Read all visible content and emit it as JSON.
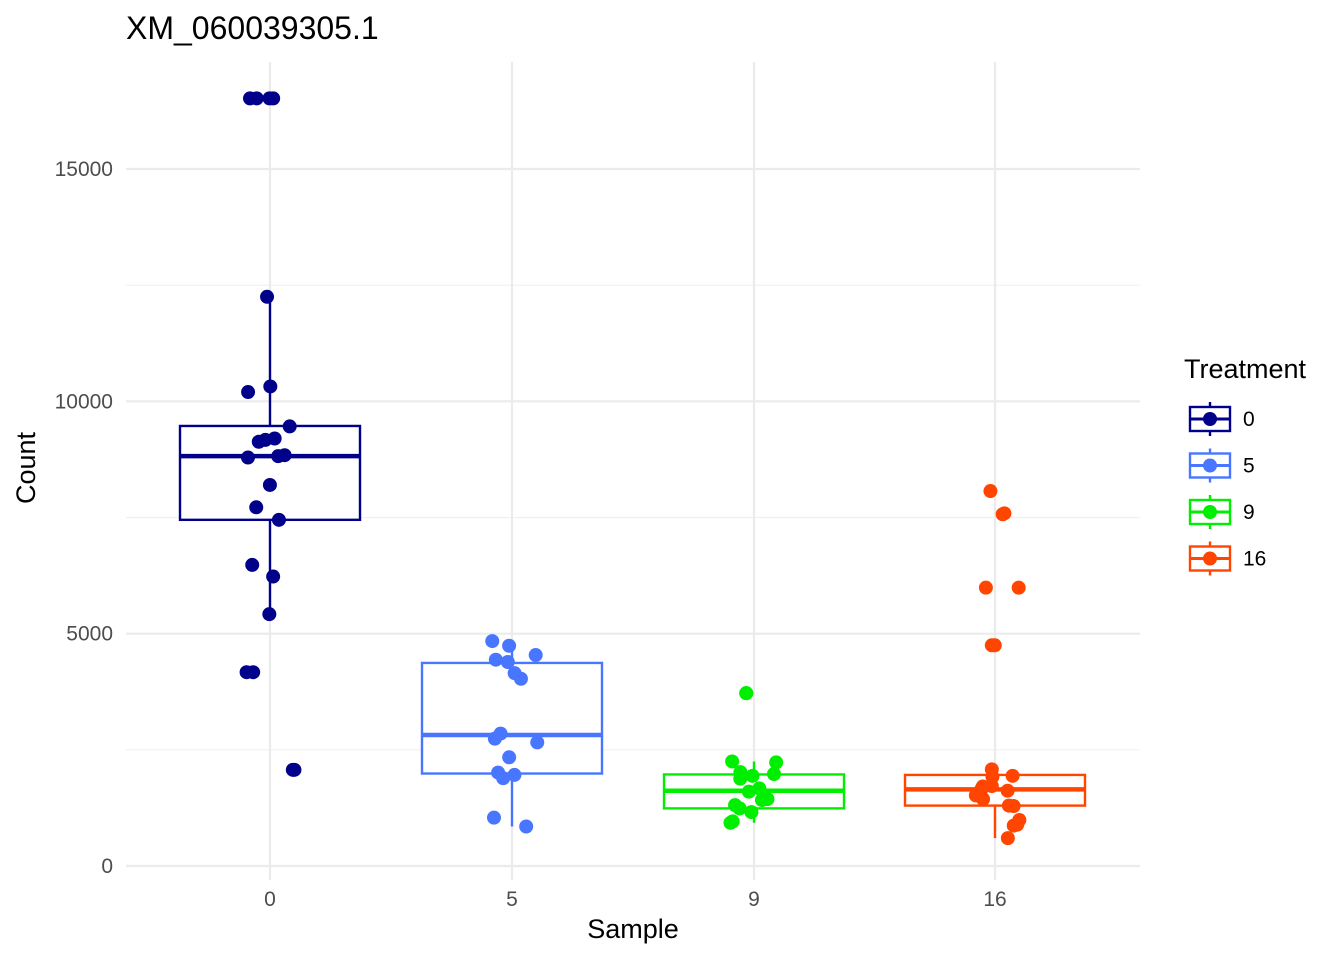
{
  "chart_data": {
    "type": "box",
    "title": "XM_060039305.1",
    "xlabel": "Sample",
    "ylabel": "Count",
    "categories": [
      "0",
      "5",
      "9",
      "16"
    ],
    "ylim": [
      0,
      16500
    ],
    "y_ticks": [
      0,
      5000,
      10000,
      15000
    ],
    "grid": true,
    "legend": {
      "title": "Treatment",
      "position": "right",
      "entries": [
        "0",
        "5",
        "9",
        "16"
      ]
    },
    "series": [
      {
        "name": "0",
        "color": "#00008B",
        "box": {
          "q1": 7450,
          "median": 8820,
          "q3": 9470,
          "whisker_low": 5450,
          "whisker_high": 12250
        },
        "points": [
          16520,
          16520,
          16520,
          16520,
          12250,
          10320,
          10200,
          9460,
          9200,
          9170,
          9130,
          8840,
          8820,
          8790,
          8200,
          7720,
          7450,
          6480,
          6230,
          5420,
          4170,
          4170,
          2070,
          2070
        ]
      },
      {
        "name": "5",
        "color": "#4876FF",
        "box": {
          "q1": 1990,
          "median": 2820,
          "q3": 4370,
          "whisker_low": 850,
          "whisker_high": 4840
        },
        "points": [
          4840,
          4740,
          4540,
          4440,
          4390,
          4150,
          4030,
          2850,
          2740,
          2660,
          2340,
          2010,
          1960,
          1890,
          1040,
          850
        ]
      },
      {
        "name": "9",
        "color": "#00EE00",
        "box": {
          "q1": 1240,
          "median": 1620,
          "q3": 1970,
          "whisker_low": 930,
          "whisker_high": 2250
        },
        "points": [
          3720,
          3720,
          2250,
          2230,
          2020,
          1980,
          1940,
          1880,
          1670,
          1600,
          1440,
          1420,
          1310,
          1240,
          1160,
          960,
          930
        ]
      },
      {
        "name": "16",
        "color": "#FF4500",
        "box": {
          "q1": 1300,
          "median": 1650,
          "q3": 1960,
          "whisker_low": 600,
          "whisker_high": 2080
        },
        "points": [
          8070,
          7590,
          7570,
          5990,
          5990,
          4750,
          4750,
          2080,
          1940,
          1920,
          1720,
          1710,
          1650,
          1620,
          1520,
          1440,
          1300,
          1290,
          990,
          890,
          870,
          600
        ]
      }
    ]
  }
}
